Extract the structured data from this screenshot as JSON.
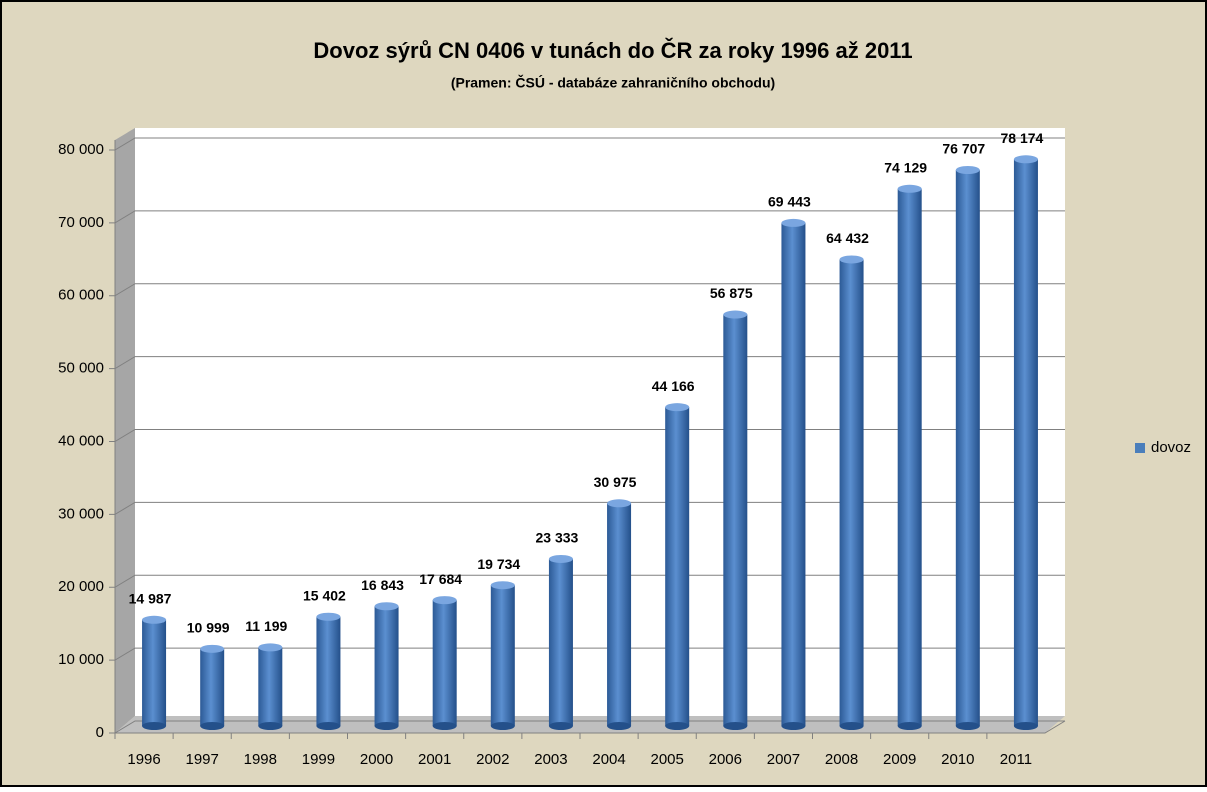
{
  "chart_data": {
    "type": "bar",
    "title": "Dovoz sýrů  CN 0406 v tunách do ČR za roky  1996 až 2011",
    "subtitle": "(Pramen: ČSÚ - databáze zahraničního obchodu)",
    "categories": [
      "1996",
      "1997",
      "1998",
      "1999",
      "2000",
      "2001",
      "2002",
      "2003",
      "2004",
      "2005",
      "2006",
      "2007",
      "2008",
      "2009",
      "2010",
      "2011"
    ],
    "series": [
      {
        "name": "dovoz",
        "color": "#4a7ebb",
        "values": [
          14987,
          10999,
          11199,
          15402,
          16843,
          17684,
          19734,
          23333,
          30975,
          44166,
          56875,
          69443,
          64432,
          74129,
          76707,
          78174
        ],
        "value_labels": [
          "14 987",
          "10 999",
          "11 199",
          "15 402",
          "16 843",
          "17 684",
          "19 734",
          "23 333",
          "30 975",
          "44 166",
          "56 875",
          "69 443",
          "64 432",
          "74 129",
          "76 707",
          "78 174"
        ]
      }
    ],
    "ylim": [
      0,
      80000
    ],
    "yticks": [
      0,
      {
        "value": 10000,
        "label": "10 000"
      },
      {
        "value": 20000,
        "label": "20 000"
      },
      {
        "value": 30000,
        "label": "30 000"
      },
      {
        "value": 40000,
        "label": "40 000"
      },
      {
        "value": 50000,
        "label": "50 000"
      },
      {
        "value": 60000,
        "label": "60 000"
      },
      {
        "value": 70000,
        "label": "70 000"
      },
      {
        "value": 80000,
        "label": "80 000"
      }
    ],
    "grid": true,
    "legend": "right"
  }
}
